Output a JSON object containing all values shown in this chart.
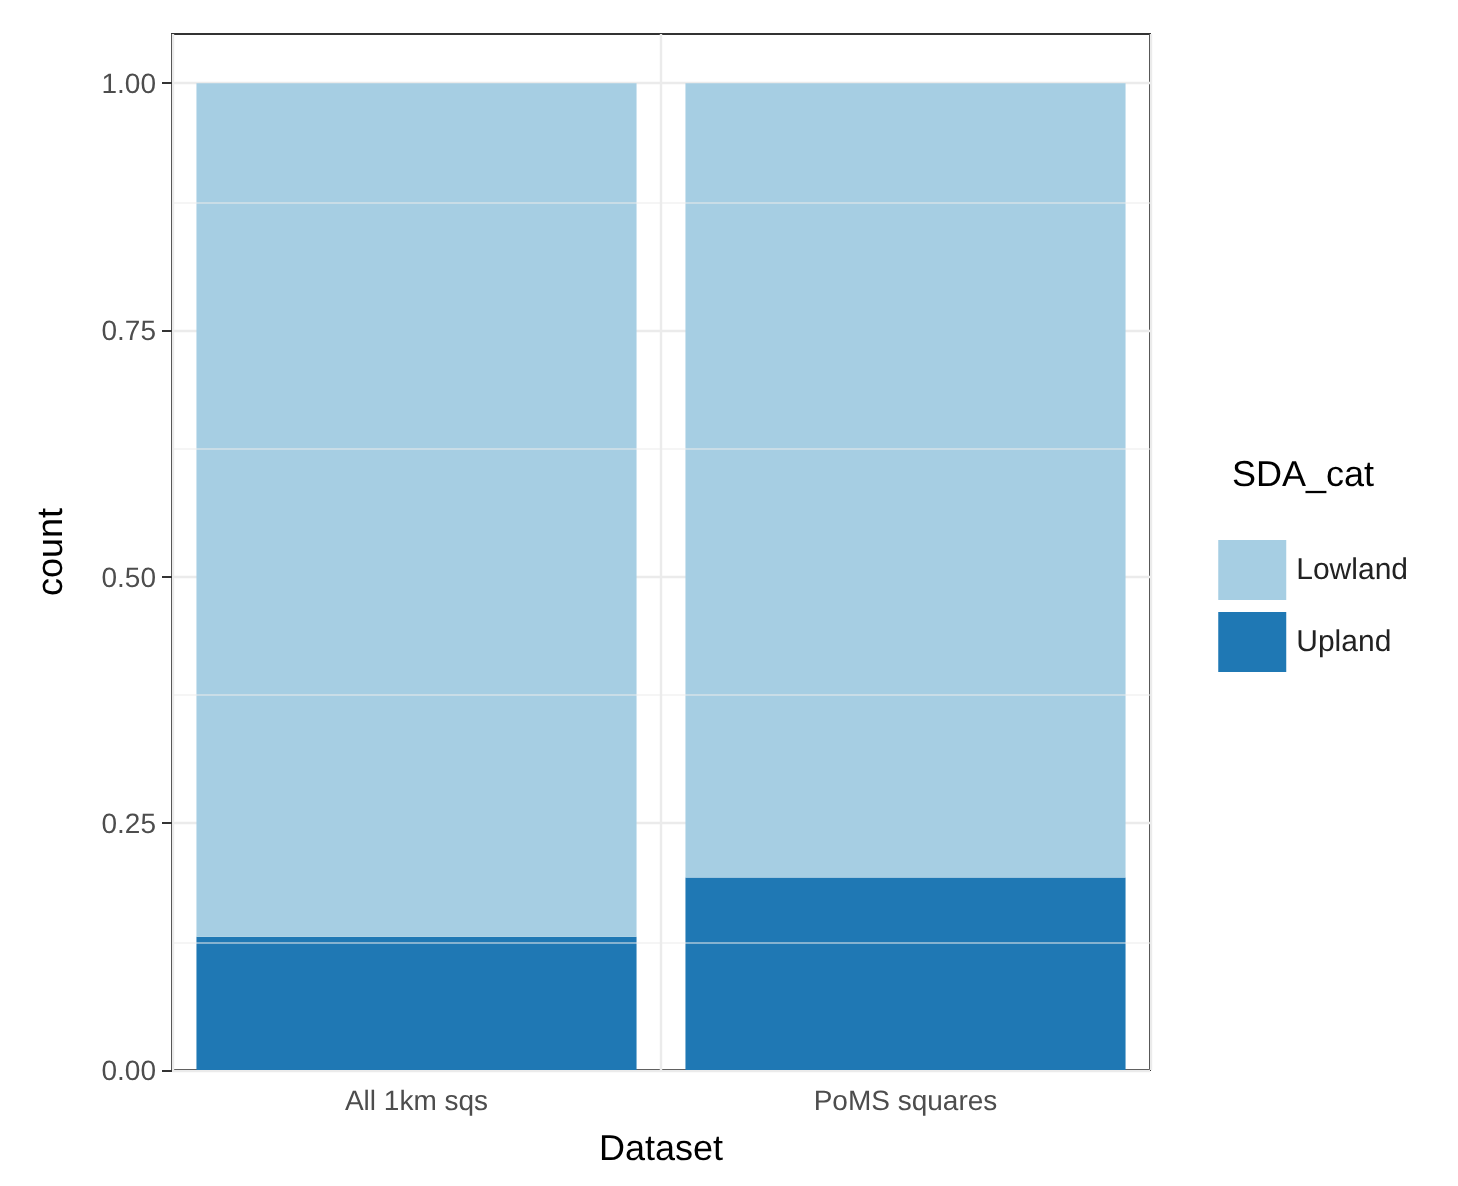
{
  "chart_data": {
    "type": "bar",
    "xlabel": "Dataset",
    "ylabel": "count",
    "legend_title": "SDA_cat",
    "categories": [
      "All 1km sqs",
      "PoMS squares"
    ],
    "stacked": true,
    "series": [
      {
        "name": "Upland",
        "color": "#1f78b4",
        "values": [
          0.135,
          0.195
        ]
      },
      {
        "name": "Lowland",
        "color": "#a6cee3",
        "values": [
          0.865,
          0.805
        ]
      }
    ],
    "ylim": [
      0,
      1.05
    ],
    "yticks": [
      {
        "value": 0,
        "label": "0.00"
      },
      {
        "value": 0.25,
        "label": "0.25"
      },
      {
        "value": 0.5,
        "label": "0.50"
      },
      {
        "value": 0.75,
        "label": "0.75"
      },
      {
        "value": 1,
        "label": "1.00"
      }
    ],
    "grid": true,
    "legend": "right"
  }
}
